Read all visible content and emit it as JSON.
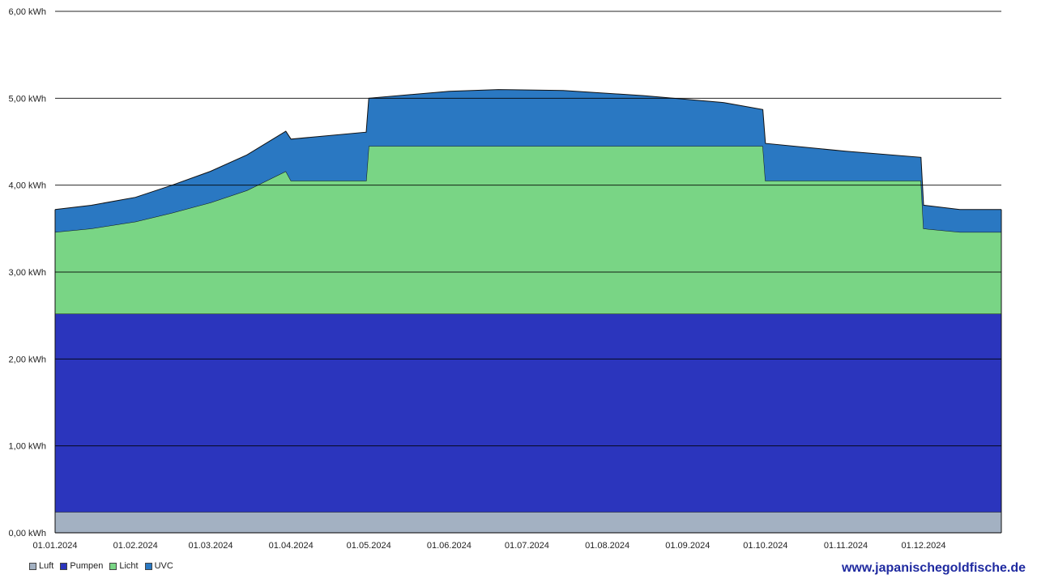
{
  "chart_data": {
    "type": "area",
    "stacked": true,
    "ylim": [
      0,
      6
    ],
    "y_ticks": [
      {
        "value": 0,
        "label": "0,00 kWh"
      },
      {
        "value": 1,
        "label": "1,00 kWh"
      },
      {
        "value": 2,
        "label": "2,00 kWh"
      },
      {
        "value": 3,
        "label": "3,00 kWh"
      },
      {
        "value": 4,
        "label": "4,00 kWh"
      },
      {
        "value": 5,
        "label": "5,00 kWh"
      },
      {
        "value": 6,
        "label": "6,00 kWh"
      }
    ],
    "x_range": [
      "2024-01-01",
      "2024-12-31"
    ],
    "x_ticks": [
      {
        "date": "2024-01-01",
        "label": "01.01.2024"
      },
      {
        "date": "2024-02-01",
        "label": "01.02.2024"
      },
      {
        "date": "2024-03-01",
        "label": "01.03.2024"
      },
      {
        "date": "2024-04-01",
        "label": "01.04.2024"
      },
      {
        "date": "2024-05-01",
        "label": "01.05.2024"
      },
      {
        "date": "2024-06-01",
        "label": "01.06.2024"
      },
      {
        "date": "2024-07-01",
        "label": "01.07.2024"
      },
      {
        "date": "2024-08-01",
        "label": "01.08.2024"
      },
      {
        "date": "2024-09-01",
        "label": "01.09.2024"
      },
      {
        "date": "2024-10-01",
        "label": "01.10.2024"
      },
      {
        "date": "2024-11-01",
        "label": "01.11.2024"
      },
      {
        "date": "2024-12-01",
        "label": "01.12.2024"
      }
    ],
    "grid": "horizontal",
    "legend_position": "bottom-left",
    "series": [
      {
        "name": "Luft",
        "color": "#a3b1c2",
        "points": [
          [
            "2024-01-01",
            0.24
          ],
          [
            "2024-12-31",
            0.24
          ]
        ]
      },
      {
        "name": "Pumpen",
        "color": "#2b35bd",
        "points": [
          [
            "2024-01-01",
            2.28
          ],
          [
            "2024-12-31",
            2.28
          ]
        ]
      },
      {
        "name": "Licht",
        "color": "#79d585",
        "points": [
          [
            "2024-01-01",
            0.94
          ],
          [
            "2024-01-15",
            0.98
          ],
          [
            "2024-02-01",
            1.06
          ],
          [
            "2024-02-15",
            1.16
          ],
          [
            "2024-03-01",
            1.28
          ],
          [
            "2024-03-15",
            1.42
          ],
          [
            "2024-03-30",
            1.64
          ],
          [
            "2024-04-01",
            1.53
          ],
          [
            "2024-04-30",
            1.53
          ],
          [
            "2024-05-01",
            1.93
          ],
          [
            "2024-09-30",
            1.93
          ],
          [
            "2024-10-01",
            1.53
          ],
          [
            "2024-11-30",
            1.53
          ],
          [
            "2024-12-01",
            0.98
          ],
          [
            "2024-12-15",
            0.94
          ],
          [
            "2024-12-31",
            0.94
          ]
        ]
      },
      {
        "name": "UVC",
        "color": "#2a78c2",
        "points": [
          [
            "2024-01-01",
            0.26
          ],
          [
            "2024-02-01",
            0.28
          ],
          [
            "2024-03-01",
            0.36
          ],
          [
            "2024-03-30",
            0.46
          ],
          [
            "2024-04-01",
            0.48
          ],
          [
            "2024-04-30",
            0.56
          ],
          [
            "2024-05-01",
            0.55
          ],
          [
            "2024-06-01",
            0.63
          ],
          [
            "2024-06-20",
            0.65
          ],
          [
            "2024-07-15",
            0.64
          ],
          [
            "2024-08-15",
            0.58
          ],
          [
            "2024-09-15",
            0.5
          ],
          [
            "2024-09-30",
            0.42
          ],
          [
            "2024-10-01",
            0.43
          ],
          [
            "2024-11-01",
            0.34
          ],
          [
            "2024-11-30",
            0.27
          ],
          [
            "2024-12-01",
            0.27
          ],
          [
            "2024-12-15",
            0.26
          ],
          [
            "2024-12-31",
            0.26
          ]
        ]
      }
    ]
  },
  "legend": [
    {
      "label": "Luft",
      "color": "#a3b1c2"
    },
    {
      "label": "Pumpen",
      "color": "#2b35bd"
    },
    {
      "label": "Licht",
      "color": "#79d585"
    },
    {
      "label": "UVC",
      "color": "#2a78c2"
    }
  ],
  "watermark": "www.japanischegoldfische.de"
}
